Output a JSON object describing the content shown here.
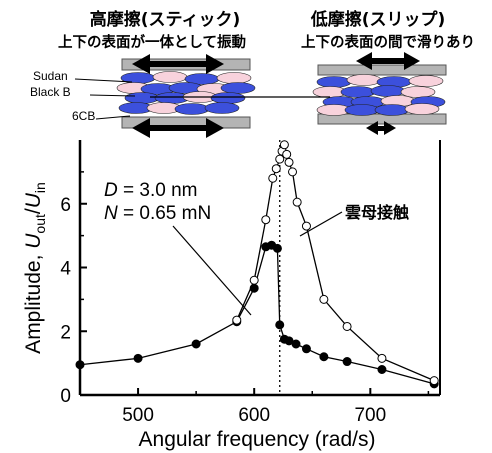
{
  "chart_data": {
    "type": "line",
    "xlabel": "Angular frequency (rad/s)",
    "ylabel": {
      "prefix": "Amplitude, ",
      "num": "U",
      "num_sub": "out",
      "sep": "/",
      "den": "U",
      "den_sub": "in"
    },
    "xlim": [
      450,
      760
    ],
    "ylim": [
      0,
      8
    ],
    "xticks": [
      500,
      600,
      700
    ],
    "yticks": [
      0,
      2,
      4,
      6
    ],
    "grid": false,
    "resonance_line_x": 622,
    "annotations": {
      "d_param": {
        "name": "D",
        "value": " = 3.0 nm"
      },
      "n_param": {
        "name": "N",
        "value": " = 0.65 mN"
      },
      "mica_contact": "雲母接触"
    },
    "series": [
      {
        "fill": "#000000",
        "x": [
          450,
          500,
          550,
          585,
          600,
          610,
          615,
          620,
          622,
          626,
          630,
          636,
          645,
          660,
          680,
          710,
          755
        ],
        "y": [
          0.95,
          1.15,
          1.6,
          2.3,
          3.35,
          4.65,
          4.7,
          4.6,
          2.2,
          1.75,
          1.7,
          1.6,
          1.45,
          1.2,
          1.05,
          0.8,
          0.35
        ]
      },
      {
        "fill": "#ffffff",
        "x": [
          585,
          600,
          610,
          616,
          619,
          622,
          624,
          626,
          628,
          630,
          633,
          637,
          645,
          660,
          680,
          710,
          755
        ],
        "y": [
          2.35,
          3.6,
          5.5,
          6.8,
          7.1,
          7.4,
          7.65,
          7.85,
          7.55,
          7.3,
          7.0,
          6.05,
          5.3,
          3.0,
          2.15,
          1.15,
          0.45
        ]
      }
    ]
  },
  "schematic": {
    "left_title": "高摩擦(スティック)",
    "left_subtitle": "上下の表面が一体として振動",
    "right_title": "低摩擦(スリップ)",
    "right_subtitle": "上下の表面の間で滑りあり",
    "label_sudan": "Sudan",
    "label_black_b": "Black B",
    "label_6cb": "6CB",
    "colors": {
      "plate": "#b4b4b4",
      "ellipse_blue": "#3c50dc",
      "ellipse_pink": "#f8d2dc",
      "arrow": "#000000"
    }
  }
}
